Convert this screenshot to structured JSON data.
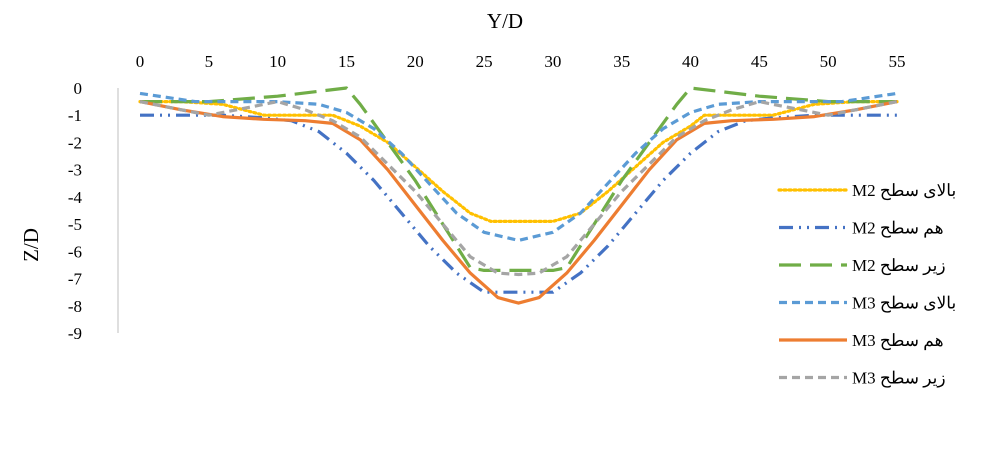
{
  "chart_data": {
    "type": "line",
    "title": "",
    "xlabel": "Y/D",
    "ylabel": "Z/D",
    "xlim": [
      0,
      55
    ],
    "ylim": [
      -9,
      0
    ],
    "x_ticks": [
      "0",
      "5",
      "10",
      "15",
      "20",
      "25",
      "30",
      "35",
      "40",
      "45",
      "50",
      "55"
    ],
    "y_ticks": [
      "0",
      "-1",
      "-2",
      "-3",
      "-4",
      "-5",
      "-6",
      "-7",
      "-8",
      "-9"
    ],
    "x_axis_position": "top",
    "grid": false,
    "legend_position": "right",
    "series": [
      {
        "name": "M2 بالای سطح",
        "color": "#FFC000",
        "dash": "dotted",
        "points": [
          [
            0,
            -0.5
          ],
          [
            3,
            -0.5
          ],
          [
            6,
            -0.6
          ],
          [
            9,
            -1.0
          ],
          [
            12,
            -1.0
          ],
          [
            14,
            -1.0
          ],
          [
            16,
            -1.4
          ],
          [
            18,
            -2.0
          ],
          [
            20,
            -2.9
          ],
          [
            22,
            -3.8
          ],
          [
            24,
            -4.6
          ],
          [
            25.5,
            -4.9
          ],
          [
            30,
            -4.9
          ],
          [
            32,
            -4.6
          ],
          [
            34,
            -3.8
          ],
          [
            36,
            -2.9
          ],
          [
            38,
            -2.0
          ],
          [
            40,
            -1.4
          ],
          [
            41,
            -1.0
          ],
          [
            43,
            -1.0
          ],
          [
            46,
            -1.0
          ],
          [
            49,
            -0.6
          ],
          [
            52,
            -0.5
          ],
          [
            55,
            -0.5
          ]
        ]
      },
      {
        "name": "M2 هم سطح",
        "color": "#4472C4",
        "dash": "dashdotdot",
        "points": [
          [
            0,
            -1.0
          ],
          [
            3,
            -1.0
          ],
          [
            6,
            -1.0
          ],
          [
            9,
            -1.1
          ],
          [
            11,
            -1.2
          ],
          [
            13,
            -1.6
          ],
          [
            15,
            -2.4
          ],
          [
            17,
            -3.4
          ],
          [
            19,
            -4.6
          ],
          [
            21,
            -5.8
          ],
          [
            23,
            -6.8
          ],
          [
            25,
            -7.5
          ],
          [
            30,
            -7.5
          ],
          [
            32,
            -6.8
          ],
          [
            34,
            -5.8
          ],
          [
            36,
            -4.6
          ],
          [
            38,
            -3.4
          ],
          [
            40,
            -2.4
          ],
          [
            42,
            -1.6
          ],
          [
            44,
            -1.2
          ],
          [
            46,
            -1.1
          ],
          [
            49,
            -1.0
          ],
          [
            52,
            -1.0
          ],
          [
            55,
            -1.0
          ]
        ]
      },
      {
        "name": "M2 زیر سطح",
        "color": "#70AD47",
        "dash": "longdash",
        "points": [
          [
            0,
            -0.5
          ],
          [
            5,
            -0.5
          ],
          [
            10,
            -0.3
          ],
          [
            15,
            0.0
          ],
          [
            16,
            -0.6
          ],
          [
            18,
            -2.0
          ],
          [
            20,
            -3.4
          ],
          [
            22,
            -5.0
          ],
          [
            24,
            -6.6
          ],
          [
            25,
            -6.7
          ],
          [
            30,
            -6.7
          ],
          [
            31,
            -6.6
          ],
          [
            33,
            -5.0
          ],
          [
            35,
            -3.4
          ],
          [
            37,
            -2.0
          ],
          [
            39,
            -0.6
          ],
          [
            40,
            0.0
          ],
          [
            45,
            -0.3
          ],
          [
            50,
            -0.5
          ],
          [
            55,
            -0.5
          ]
        ]
      },
      {
        "name": "M3  بالای سطح",
        "color": "#5B9BD5",
        "dash": "dashed",
        "points": [
          [
            0,
            -0.2
          ],
          [
            4,
            -0.5
          ],
          [
            7,
            -0.5
          ],
          [
            10,
            -0.5
          ],
          [
            13,
            -0.6
          ],
          [
            15,
            -0.9
          ],
          [
            17,
            -1.5
          ],
          [
            19,
            -2.4
          ],
          [
            21,
            -3.5
          ],
          [
            23,
            -4.6
          ],
          [
            25,
            -5.3
          ],
          [
            27.5,
            -5.6
          ],
          [
            30,
            -5.3
          ],
          [
            32,
            -4.6
          ],
          [
            34,
            -3.5
          ],
          [
            36,
            -2.4
          ],
          [
            38,
            -1.5
          ],
          [
            40,
            -0.9
          ],
          [
            42,
            -0.6
          ],
          [
            45,
            -0.5
          ],
          [
            48,
            -0.5
          ],
          [
            51,
            -0.5
          ],
          [
            55,
            -0.2
          ]
        ]
      },
      {
        "name": "M3 هم سطح",
        "color": "#ED7D31",
        "dash": "solid",
        "points": [
          [
            0,
            -0.5
          ],
          [
            3,
            -0.8
          ],
          [
            6,
            -1.05
          ],
          [
            9,
            -1.15
          ],
          [
            12,
            -1.2
          ],
          [
            14,
            -1.3
          ],
          [
            16,
            -1.9
          ],
          [
            18,
            -3.0
          ],
          [
            20,
            -4.3
          ],
          [
            22,
            -5.6
          ],
          [
            24,
            -6.8
          ],
          [
            26,
            -7.7
          ],
          [
            27.5,
            -7.9
          ],
          [
            29,
            -7.7
          ],
          [
            31,
            -6.8
          ],
          [
            33,
            -5.6
          ],
          [
            35,
            -4.3
          ],
          [
            37,
            -3.0
          ],
          [
            39,
            -1.9
          ],
          [
            41,
            -1.3
          ],
          [
            43,
            -1.2
          ],
          [
            46,
            -1.15
          ],
          [
            49,
            -1.05
          ],
          [
            52,
            -0.8
          ],
          [
            55,
            -0.5
          ]
        ]
      },
      {
        "name": "M3 زیر سطح",
        "color": "#A5A5A5",
        "dash": "dashed",
        "points": [
          [
            0,
            -0.5
          ],
          [
            3,
            -0.8
          ],
          [
            5,
            -1.0
          ],
          [
            8,
            -0.7
          ],
          [
            10,
            -0.5
          ],
          [
            12,
            -0.8
          ],
          [
            14,
            -1.2
          ],
          [
            16,
            -1.8
          ],
          [
            18,
            -2.8
          ],
          [
            20,
            -3.8
          ],
          [
            22,
            -5.0
          ],
          [
            24,
            -6.2
          ],
          [
            26,
            -6.8
          ],
          [
            27.5,
            -6.85
          ],
          [
            29,
            -6.8
          ],
          [
            31,
            -6.2
          ],
          [
            33,
            -5.0
          ],
          [
            35,
            -3.8
          ],
          [
            37,
            -2.8
          ],
          [
            39,
            -1.8
          ],
          [
            41,
            -1.2
          ],
          [
            43,
            -0.8
          ],
          [
            45,
            -0.5
          ],
          [
            47,
            -0.7
          ],
          [
            50,
            -1.0
          ],
          [
            52,
            -0.8
          ],
          [
            55,
            -0.5
          ]
        ]
      }
    ]
  }
}
